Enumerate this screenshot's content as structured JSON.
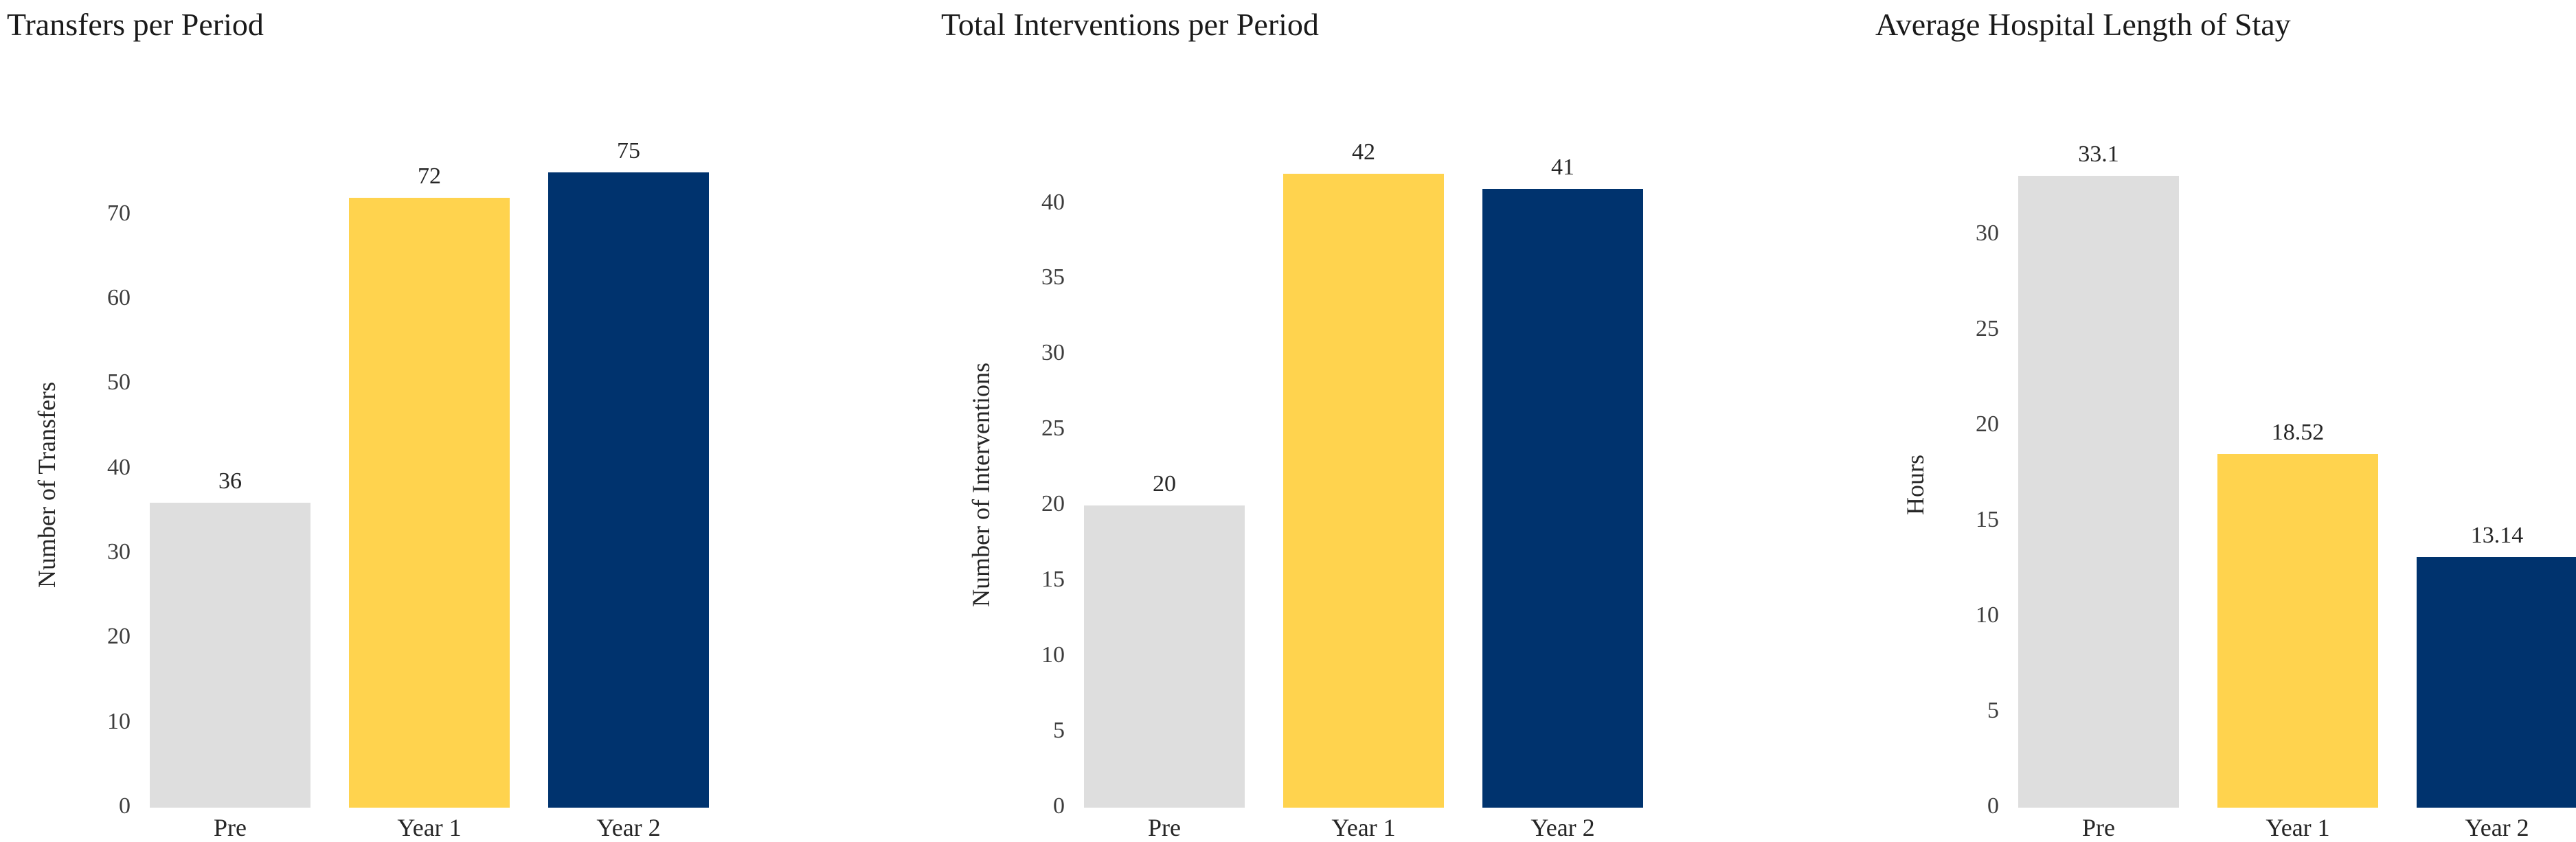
{
  "page": {
    "background_color": "#FFFFFF",
    "text_color": "#262626",
    "tick_color": "#3D3D3D"
  },
  "chart_data": [
    {
      "type": "bar",
      "title": "Transfers per Period",
      "ylabel": "Number of Transfers",
      "xlabel": "",
      "categories": [
        "Pre",
        "Year 1",
        "Year 2"
      ],
      "values": [
        36,
        72,
        75
      ],
      "value_labels": [
        "36",
        "72",
        "75"
      ],
      "yticks": [
        0,
        10,
        20,
        30,
        40,
        50,
        60,
        70
      ],
      "ylim": [
        0,
        76.3
      ],
      "bar_colors": [
        "#DEDEDE",
        "#FFD34E",
        "#00336E"
      ],
      "grid": false,
      "legend": false,
      "axis_lines": false
    },
    {
      "type": "bar",
      "title": "Total Interventions per Period",
      "ylabel": "Number of Interventions",
      "xlabel": "",
      "categories": [
        "Pre",
        "Year 1",
        "Year 2"
      ],
      "values": [
        20,
        42,
        41
      ],
      "value_labels": [
        "20",
        "42",
        "41"
      ],
      "yticks": [
        0,
        5,
        10,
        15,
        20,
        25,
        30,
        35,
        40
      ],
      "ylim": [
        0,
        42.8
      ],
      "bar_colors": [
        "#DEDEDE",
        "#FFD34E",
        "#00336E"
      ],
      "grid": false,
      "legend": false,
      "axis_lines": false
    },
    {
      "type": "bar",
      "title": "Average Hospital Length of Stay",
      "ylabel": "Hours",
      "xlabel": "",
      "categories": [
        "Pre",
        "Year 1",
        "Year 2"
      ],
      "values": [
        33.1,
        18.52,
        13.14
      ],
      "value_labels": [
        "33.1",
        "18.52",
        "13.14"
      ],
      "yticks": [
        0,
        5,
        10,
        15,
        20,
        25,
        30
      ],
      "ylim": [
        0,
        33.85
      ],
      "bar_colors": [
        "#DEDEDE",
        "#FFD34E",
        "#00336E"
      ],
      "grid": false,
      "legend": false,
      "axis_lines": false
    }
  ]
}
